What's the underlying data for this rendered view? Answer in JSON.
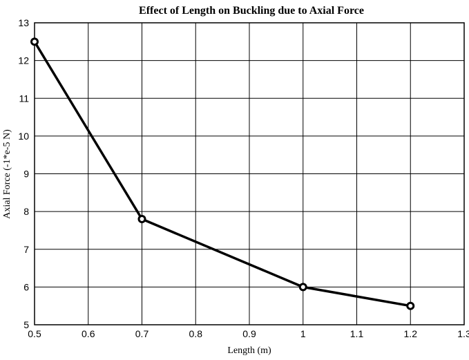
{
  "chart_data": {
    "type": "line",
    "title": "Effect of Length on Buckling due to Axial Force",
    "xlabel": "Length (m)",
    "ylabel": "Axial Force (-1*e-5 N)",
    "xlim": [
      0.5,
      1.3
    ],
    "ylim": [
      5,
      13
    ],
    "xticks": [
      "0.5",
      "0.6",
      "0.7",
      "0.8",
      "0.9",
      "1",
      "1.1",
      "1.2",
      "1.3"
    ],
    "yticks": [
      "5",
      "6",
      "7",
      "8",
      "9",
      "10",
      "11",
      "12",
      "13"
    ],
    "grid": true,
    "series": [
      {
        "x": [
          0.5,
          0.7,
          1.0,
          1.2
        ],
        "y": [
          12.5,
          7.8,
          6.0,
          5.5
        ],
        "color": "#000000"
      }
    ]
  }
}
